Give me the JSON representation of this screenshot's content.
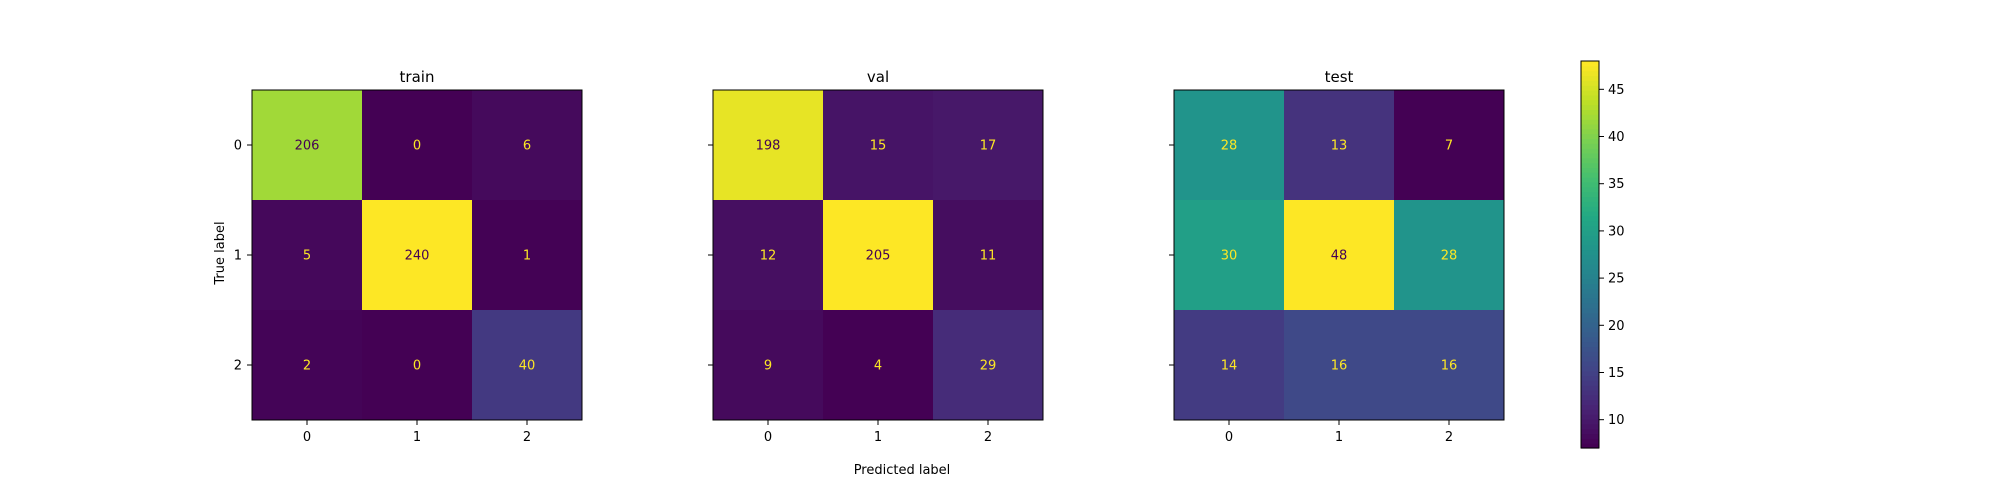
{
  "chart_data": {
    "type": "heatmap",
    "xlabel": "Predicted label",
    "ylabel": "True label",
    "class_labels": [
      "0",
      "1",
      "2"
    ],
    "colormap": "viridis",
    "colorbar": {
      "range": [
        7,
        48
      ],
      "ticks": [
        10,
        15,
        20,
        25,
        30,
        35,
        40,
        45
      ]
    },
    "panels": [
      {
        "title": "train",
        "matrix": [
          [
            206,
            0,
            6
          ],
          [
            5,
            240,
            1
          ],
          [
            2,
            0,
            40
          ]
        ]
      },
      {
        "title": "val",
        "matrix": [
          [
            198,
            15,
            17
          ],
          [
            12,
            205,
            11
          ],
          [
            9,
            4,
            29
          ]
        ]
      },
      {
        "title": "test",
        "matrix": [
          [
            28,
            13,
            7
          ],
          [
            30,
            48,
            28
          ],
          [
            14,
            16,
            16
          ]
        ]
      }
    ]
  }
}
